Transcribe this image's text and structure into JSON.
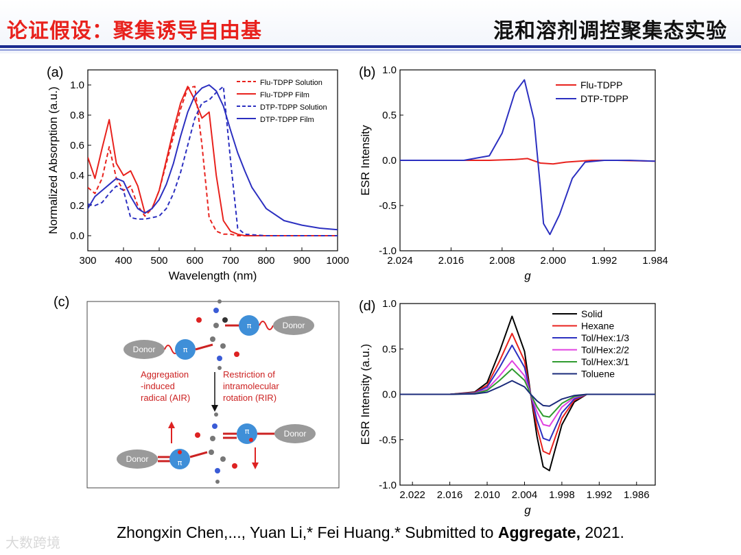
{
  "header": {
    "title_left": "论证假设：聚集诱导自由基",
    "title_right": "混和溶剂调控聚集态实验"
  },
  "footer": {
    "citation_prefix": "Zhongxin Chen,..., Yuan Li,* Fei Huang.* Submitted to ",
    "journal": "Aggregate,",
    "year": " 2021."
  },
  "watermark": "大数跨境",
  "colors": {
    "red": "#e8211c",
    "blue": "#2b2fc0",
    "navy": "#1b2a8f",
    "magenta": "#e040e0",
    "green": "#2e9a2e",
    "darkblue": "#1a2a7a"
  },
  "diagram": {
    "panel_label": "(c)",
    "donor": "Donor",
    "pi": "π",
    "air_text": [
      "Aggregation",
      "-induced",
      "radical (AIR)"
    ],
    "rir_text": [
      "Restriction of",
      "intramolecular",
      "rotation (RIR)"
    ]
  },
  "chart_data": [
    {
      "panel": "(a)",
      "type": "line",
      "xlabel": "Wavelength (nm)",
      "ylabel": "Normalized Absorption (a.u.)",
      "xlim": [
        300,
        1000
      ],
      "ylim": [
        -0.1,
        1.1
      ],
      "xticks": [
        300,
        400,
        500,
        600,
        700,
        800,
        900,
        1000
      ],
      "yticks": [
        0.0,
        0.2,
        0.4,
        0.6,
        0.8,
        1.0
      ],
      "legend": "top-right",
      "series": [
        {
          "name": "Flu-TDPP Solution",
          "color": "#e8211c",
          "dash": true,
          "x": [
            300,
            320,
            340,
            360,
            380,
            400,
            420,
            440,
            460,
            480,
            500,
            520,
            540,
            560,
            580,
            600,
            620,
            640,
            660,
            680,
            700,
            720,
            740,
            800,
            900,
            1000
          ],
          "y": [
            0.32,
            0.28,
            0.38,
            0.59,
            0.38,
            0.3,
            0.33,
            0.2,
            0.13,
            0.18,
            0.3,
            0.48,
            0.66,
            0.84,
            0.98,
            0.99,
            0.6,
            0.12,
            0.03,
            0.01,
            0.01,
            0.0,
            0.0,
            0.0,
            0.0,
            0.0
          ]
        },
        {
          "name": "Flu-TDPP Film",
          "color": "#e8211c",
          "dash": false,
          "x": [
            300,
            320,
            340,
            360,
            380,
            400,
            420,
            440,
            460,
            480,
            500,
            520,
            540,
            560,
            580,
            600,
            620,
            640,
            660,
            680,
            700,
            720,
            740,
            800,
            900,
            1000
          ],
          "y": [
            0.52,
            0.38,
            0.58,
            0.77,
            0.48,
            0.4,
            0.43,
            0.33,
            0.15,
            0.18,
            0.3,
            0.5,
            0.7,
            0.88,
            0.99,
            0.9,
            0.78,
            0.82,
            0.4,
            0.1,
            0.03,
            0.01,
            0.0,
            0.0,
            0.0,
            0.0
          ]
        },
        {
          "name": "DTP-TDPP Solution",
          "color": "#2b2fc0",
          "dash": true,
          "x": [
            300,
            320,
            340,
            360,
            380,
            400,
            420,
            440,
            460,
            480,
            500,
            520,
            540,
            560,
            580,
            600,
            620,
            640,
            660,
            680,
            700,
            720,
            740,
            800,
            900,
            1000
          ],
          "y": [
            0.21,
            0.2,
            0.22,
            0.28,
            0.33,
            0.3,
            0.12,
            0.11,
            0.11,
            0.12,
            0.13,
            0.18,
            0.28,
            0.42,
            0.6,
            0.78,
            0.88,
            0.9,
            0.95,
            0.99,
            0.5,
            0.05,
            0.01,
            0.0,
            0.0,
            0.0
          ]
        },
        {
          "name": "DTP-TDPP Film",
          "color": "#2b2fc0",
          "dash": false,
          "x": [
            300,
            320,
            340,
            360,
            380,
            400,
            420,
            440,
            460,
            480,
            500,
            520,
            540,
            560,
            580,
            600,
            620,
            640,
            660,
            680,
            700,
            720,
            740,
            760,
            800,
            850,
            900,
            950,
            1000
          ],
          "y": [
            0.18,
            0.26,
            0.3,
            0.34,
            0.38,
            0.36,
            0.26,
            0.18,
            0.15,
            0.18,
            0.24,
            0.34,
            0.48,
            0.66,
            0.82,
            0.93,
            0.98,
            1.0,
            0.96,
            0.86,
            0.7,
            0.55,
            0.43,
            0.32,
            0.18,
            0.1,
            0.07,
            0.05,
            0.04
          ]
        }
      ]
    },
    {
      "panel": "(b)",
      "type": "line",
      "xlabel": "g",
      "ylabel": "ESR Intensity",
      "xlim": [
        2.024,
        1.984
      ],
      "ylim": [
        -1.0,
        1.0
      ],
      "xticks": [
        2.024,
        2.016,
        2.008,
        2.0,
        1.992,
        1.984
      ],
      "xtick_labels": [
        "2.024",
        "2.016",
        "2.008",
        "2.000",
        "1.992",
        "1.984"
      ],
      "yticks": [
        -1.0,
        -0.5,
        0.0,
        0.5,
        1.0
      ],
      "ytick_labels": [
        "-1.0",
        "-0.5",
        "0.0",
        "0.5",
        "1.0"
      ],
      "legend": "top-right",
      "series": [
        {
          "name": "Flu-TDPP",
          "color": "#e8211c",
          "x": [
            2.024,
            2.016,
            2.01,
            2.006,
            2.004,
            2.002,
            2.0,
            1.998,
            1.994,
            1.99,
            1.984
          ],
          "y": [
            0.0,
            0.0,
            0.0,
            0.01,
            0.02,
            -0.03,
            -0.04,
            -0.02,
            0.0,
            0.0,
            -0.01
          ]
        },
        {
          "name": "DTP-TDPP",
          "color": "#2b2fc0",
          "x": [
            2.024,
            2.014,
            2.01,
            2.008,
            2.006,
            2.0045,
            2.003,
            2.002,
            2.0015,
            2.0005,
            1.999,
            1.997,
            1.995,
            1.992,
            1.988,
            1.984
          ],
          "y": [
            0.0,
            0.0,
            0.05,
            0.3,
            0.75,
            0.89,
            0.45,
            -0.3,
            -0.7,
            -0.82,
            -0.6,
            -0.2,
            -0.02,
            0.0,
            0.0,
            -0.01
          ]
        }
      ]
    },
    {
      "panel": "(d)",
      "type": "line",
      "xlabel": "g",
      "ylabel": "ESR Intensity (a.u.)",
      "xlim": [
        2.024,
        1.983
      ],
      "ylim": [
        -1.0,
        1.0
      ],
      "xticks": [
        2.022,
        2.016,
        2.01,
        2.004,
        1.998,
        1.992,
        1.986
      ],
      "xtick_labels": [
        "2.022",
        "2.016",
        "2.010",
        "2.004",
        "1.998",
        "1.992",
        "1.986"
      ],
      "yticks": [
        -1.0,
        -0.5,
        0.0,
        0.5,
        1.0
      ],
      "ytick_labels": [
        "-1.0",
        "-0.5",
        "0.0",
        "0.5",
        "1.0"
      ],
      "legend": "top-right",
      "series": [
        {
          "name": "Solid",
          "color": "#000000",
          "amp": 0.86,
          "neg": 0.84
        },
        {
          "name": "Hexane",
          "color": "#e8211c",
          "amp": 0.67,
          "neg": 0.66
        },
        {
          "name": "Tol/Hex:1/3",
          "color": "#2b2fc0",
          "amp": 0.54,
          "neg": 0.51
        },
        {
          "name": "Tol/Hex:2/2",
          "color": "#e040e0",
          "amp": 0.37,
          "neg": 0.35
        },
        {
          "name": "Tol/Hex:3/1",
          "color": "#2e9a2e",
          "amp": 0.28,
          "neg": 0.25
        },
        {
          "name": "Toluene",
          "color": "#1a2a7a",
          "amp": 0.15,
          "neg": 0.13
        }
      ],
      "x": [
        2.024,
        2.016,
        2.012,
        2.01,
        2.008,
        2.006,
        2.004,
        2.003,
        2.002,
        2.001,
        2.0,
        1.999,
        1.998,
        1.996,
        1.994,
        1.99,
        1.983
      ],
      "shape": [
        0.0,
        0.0,
        0.03,
        0.15,
        0.55,
        1.0,
        0.55,
        0.0,
        -0.55,
        -0.95,
        -1.0,
        -0.7,
        -0.4,
        -0.1,
        0.0,
        0.0,
        0.0
      ]
    }
  ]
}
